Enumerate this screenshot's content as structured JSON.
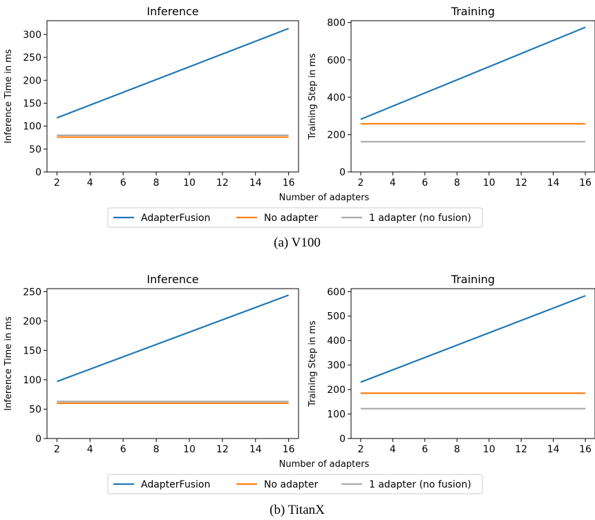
{
  "figure": {
    "common_xlabel": "Number of adapters",
    "legend": [
      {
        "label": "AdapterFusion",
        "color": "#1f77b4"
      },
      {
        "label": "No adapter",
        "color": "#ff7f0e"
      },
      {
        "label": "1 adapter (no fusion)",
        "color": "#aaaaaa"
      }
    ]
  },
  "groups": [
    {
      "caption": "(a) V100"
    },
    {
      "caption": "(b) TitanX"
    }
  ],
  "chart_data": [
    {
      "type": "line",
      "group": 0,
      "title": "Inference",
      "xlabel": "",
      "ylabel": "Inference Time in ms",
      "xlim": [
        1.4,
        16.6
      ],
      "ylim": [
        0,
        330
      ],
      "xticks": [
        2,
        4,
        6,
        8,
        10,
        12,
        14,
        16
      ],
      "yticks": [
        0,
        50,
        100,
        150,
        200,
        250,
        300
      ],
      "x": [
        2,
        16
      ],
      "series": [
        {
          "name": "AdapterFusion",
          "color": "#1f77b4",
          "values": [
            118,
            313
          ]
        },
        {
          "name": "No adapter",
          "color": "#ff7f0e",
          "values": [
            76,
            76
          ]
        },
        {
          "name": "1 adapter (no fusion)",
          "color": "#aaaaaa",
          "values": [
            80,
            80
          ]
        }
      ]
    },
    {
      "type": "line",
      "group": 0,
      "title": "Training",
      "xlabel": "",
      "ylabel": "Training Step in ms",
      "xlim": [
        1.4,
        16.6
      ],
      "ylim": [
        0,
        810
      ],
      "xticks": [
        2,
        4,
        6,
        8,
        10,
        12,
        14,
        16
      ],
      "yticks": [
        0,
        200,
        400,
        600,
        800
      ],
      "x": [
        2,
        16
      ],
      "series": [
        {
          "name": "AdapterFusion",
          "color": "#1f77b4",
          "values": [
            282,
            775
          ]
        },
        {
          "name": "No adapter",
          "color": "#ff7f0e",
          "values": [
            258,
            258
          ]
        },
        {
          "name": "1 adapter (no fusion)",
          "color": "#aaaaaa",
          "values": [
            162,
            162
          ]
        }
      ]
    },
    {
      "type": "line",
      "group": 1,
      "title": "Inference",
      "xlabel": "",
      "ylabel": "Inference Time in ms",
      "xlim": [
        1.4,
        16.6
      ],
      "ylim": [
        0,
        255
      ],
      "xticks": [
        2,
        4,
        6,
        8,
        10,
        12,
        14,
        16
      ],
      "yticks": [
        0,
        50,
        100,
        150,
        200,
        250
      ],
      "x": [
        2,
        16
      ],
      "series": [
        {
          "name": "AdapterFusion",
          "color": "#1f77b4",
          "values": [
            97,
            244
          ]
        },
        {
          "name": "No adapter",
          "color": "#ff7f0e",
          "values": [
            60,
            60
          ]
        },
        {
          "name": "1 adapter (no fusion)",
          "color": "#aaaaaa",
          "values": [
            63,
            63
          ]
        }
      ]
    },
    {
      "type": "line",
      "group": 1,
      "title": "Training",
      "xlabel": "",
      "ylabel": "Training Step in ms",
      "xlim": [
        1.4,
        16.6
      ],
      "ylim": [
        0,
        612
      ],
      "xticks": [
        2,
        4,
        6,
        8,
        10,
        12,
        14,
        16
      ],
      "yticks": [
        0,
        100,
        200,
        300,
        400,
        500,
        600
      ],
      "x": [
        2,
        16
      ],
      "series": [
        {
          "name": "AdapterFusion",
          "color": "#1f77b4",
          "values": [
            230,
            583
          ]
        },
        {
          "name": "No adapter",
          "color": "#ff7f0e",
          "values": [
            185,
            185
          ]
        },
        {
          "name": "1 adapter (no fusion)",
          "color": "#aaaaaa",
          "values": [
            122,
            122
          ]
        }
      ]
    }
  ]
}
